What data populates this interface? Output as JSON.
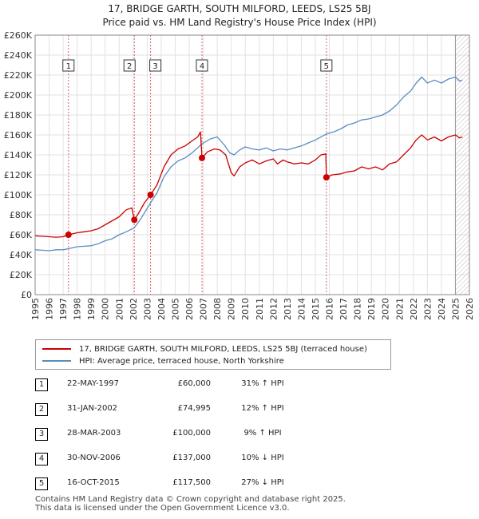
{
  "title": {
    "line1": "17, BRIDGE GARTH, SOUTH MILFORD, LEEDS, LS25 5BJ",
    "line2": "Price paid vs. HM Land Registry's House Price Index (HPI)"
  },
  "colors": {
    "property": "#cc0000",
    "hpi": "#5b8cc0",
    "grid": "#e2e2e2",
    "marker_line": "#e06060",
    "hatch": "#bbbbbb"
  },
  "chart_data": {
    "type": "line",
    "xlim": [
      1995,
      2026
    ],
    "ylim": [
      0,
      260000
    ],
    "x_ticks": [
      "1995",
      "1996",
      "1997",
      "1998",
      "1999",
      "2000",
      "2001",
      "2002",
      "2003",
      "2004",
      "2005",
      "2006",
      "2007",
      "2008",
      "2009",
      "2010",
      "2011",
      "2012",
      "2013",
      "2014",
      "2015",
      "2016",
      "2017",
      "2018",
      "2019",
      "2020",
      "2021",
      "2022",
      "2023",
      "2024",
      "2025",
      "2026"
    ],
    "y_ticks": [
      {
        "value": 0,
        "label": "£0"
      },
      {
        "value": 20000,
        "label": "£20K"
      },
      {
        "value": 40000,
        "label": "£40K"
      },
      {
        "value": 60000,
        "label": "£60K"
      },
      {
        "value": 80000,
        "label": "£80K"
      },
      {
        "value": 100000,
        "label": "£100K"
      },
      {
        "value": 120000,
        "label": "£120K"
      },
      {
        "value": 140000,
        "label": "£140K"
      },
      {
        "value": 160000,
        "label": "£160K"
      },
      {
        "value": 180000,
        "label": "£180K"
      },
      {
        "value": 200000,
        "label": "£200K"
      },
      {
        "value": 220000,
        "label": "£220K"
      },
      {
        "value": 240000,
        "label": "£240K"
      },
      {
        "value": 260000,
        "label": "£260K"
      }
    ],
    "hatch_from": 2025.0,
    "series": [
      {
        "name": "17, BRIDGE GARTH, SOUTH MILFORD, LEEDS, LS25 5BJ (terraced house)",
        "points": [
          [
            1995.0,
            59000
          ],
          [
            1995.5,
            58500
          ],
          [
            1996.0,
            58000
          ],
          [
            1996.5,
            57500
          ],
          [
            1997.0,
            58000
          ],
          [
            1997.38,
            60000
          ],
          [
            1998.0,
            62000
          ],
          [
            1998.5,
            63000
          ],
          [
            1999.0,
            64000
          ],
          [
            1999.5,
            66000
          ],
          [
            2000.0,
            70000
          ],
          [
            2000.5,
            74000
          ],
          [
            2001.0,
            78000
          ],
          [
            2001.5,
            85000
          ],
          [
            2001.9,
            87000
          ],
          [
            2002.08,
            74995
          ],
          [
            2002.4,
            82000
          ],
          [
            2002.8,
            92000
          ],
          [
            2003.24,
            100000
          ],
          [
            2003.7,
            110000
          ],
          [
            2004.2,
            128000
          ],
          [
            2004.7,
            140000
          ],
          [
            2005.2,
            146000
          ],
          [
            2005.7,
            149000
          ],
          [
            2006.2,
            154000
          ],
          [
            2006.6,
            158000
          ],
          [
            2006.8,
            163000
          ],
          [
            2006.91,
            137000
          ],
          [
            2007.3,
            143000
          ],
          [
            2007.8,
            146000
          ],
          [
            2008.2,
            145000
          ],
          [
            2008.6,
            140000
          ],
          [
            2009.0,
            122000
          ],
          [
            2009.2,
            119000
          ],
          [
            2009.6,
            128000
          ],
          [
            2010.0,
            132000
          ],
          [
            2010.5,
            135000
          ],
          [
            2011.0,
            131000
          ],
          [
            2011.5,
            134000
          ],
          [
            2012.0,
            136000
          ],
          [
            2012.3,
            131000
          ],
          [
            2012.7,
            135000
          ],
          [
            2013.0,
            133000
          ],
          [
            2013.5,
            131000
          ],
          [
            2014.0,
            132000
          ],
          [
            2014.5,
            131000
          ],
          [
            2015.0,
            135000
          ],
          [
            2015.4,
            140000
          ],
          [
            2015.75,
            141000
          ],
          [
            2015.79,
            117500
          ],
          [
            2016.2,
            120000
          ],
          [
            2016.8,
            121000
          ],
          [
            2017.3,
            123000
          ],
          [
            2017.8,
            124000
          ],
          [
            2018.3,
            128000
          ],
          [
            2018.8,
            126000
          ],
          [
            2019.3,
            128000
          ],
          [
            2019.8,
            125000
          ],
          [
            2020.3,
            131000
          ],
          [
            2020.8,
            133000
          ],
          [
            2021.3,
            140000
          ],
          [
            2021.8,
            147000
          ],
          [
            2022.2,
            155000
          ],
          [
            2022.6,
            160000
          ],
          [
            2023.0,
            155000
          ],
          [
            2023.5,
            158000
          ],
          [
            2024.0,
            154000
          ],
          [
            2024.5,
            158000
          ],
          [
            2025.0,
            160000
          ],
          [
            2025.3,
            157000
          ],
          [
            2025.5,
            158000
          ]
        ]
      },
      {
        "name": "HPI: Average price, terraced house, North Yorkshire",
        "points": [
          [
            1995.0,
            45000
          ],
          [
            1995.5,
            44500
          ],
          [
            1996.0,
            44000
          ],
          [
            1996.5,
            45000
          ],
          [
            1997.0,
            45000
          ],
          [
            1997.38,
            46000
          ],
          [
            1998.0,
            48000
          ],
          [
            1998.5,
            48500
          ],
          [
            1999.0,
            49000
          ],
          [
            1999.5,
            51000
          ],
          [
            2000.0,
            54000
          ],
          [
            2000.5,
            56000
          ],
          [
            2001.0,
            60000
          ],
          [
            2001.5,
            63000
          ],
          [
            2002.08,
            67000
          ],
          [
            2002.5,
            75000
          ],
          [
            2003.24,
            92000
          ],
          [
            2003.7,
            102000
          ],
          [
            2004.2,
            118000
          ],
          [
            2004.7,
            128000
          ],
          [
            2005.2,
            134000
          ],
          [
            2005.7,
            137000
          ],
          [
            2006.2,
            142000
          ],
          [
            2006.91,
            151000
          ],
          [
            2007.5,
            156000
          ],
          [
            2008.0,
            158000
          ],
          [
            2008.5,
            150000
          ],
          [
            2008.9,
            142000
          ],
          [
            2009.2,
            140000
          ],
          [
            2009.6,
            145000
          ],
          [
            2010.0,
            148000
          ],
          [
            2010.5,
            146000
          ],
          [
            2011.0,
            145000
          ],
          [
            2011.5,
            147000
          ],
          [
            2012.0,
            144000
          ],
          [
            2012.5,
            146000
          ],
          [
            2013.0,
            145000
          ],
          [
            2013.5,
            147000
          ],
          [
            2014.0,
            149000
          ],
          [
            2014.5,
            152000
          ],
          [
            2015.0,
            155000
          ],
          [
            2015.79,
            161000
          ],
          [
            2016.3,
            163000
          ],
          [
            2016.8,
            166000
          ],
          [
            2017.3,
            170000
          ],
          [
            2017.8,
            172000
          ],
          [
            2018.3,
            175000
          ],
          [
            2018.8,
            176000
          ],
          [
            2019.3,
            178000
          ],
          [
            2019.8,
            180000
          ],
          [
            2020.3,
            184000
          ],
          [
            2020.8,
            190000
          ],
          [
            2021.3,
            198000
          ],
          [
            2021.8,
            204000
          ],
          [
            2022.2,
            212000
          ],
          [
            2022.6,
            218000
          ],
          [
            2023.0,
            212000
          ],
          [
            2023.5,
            215000
          ],
          [
            2024.0,
            212000
          ],
          [
            2024.5,
            216000
          ],
          [
            2025.0,
            218000
          ],
          [
            2025.3,
            214000
          ],
          [
            2025.5,
            215000
          ]
        ]
      }
    ],
    "sales": [
      {
        "label": "1",
        "x": 1997.38,
        "price": 60000
      },
      {
        "label": "2",
        "x": 2002.08,
        "price": 74995
      },
      {
        "label": "3",
        "x": 2003.24,
        "price": 100000
      },
      {
        "label": "4",
        "x": 2006.91,
        "price": 137000
      },
      {
        "label": "5",
        "x": 2015.79,
        "price": 117500
      }
    ]
  },
  "legend": {
    "property": "17, BRIDGE GARTH, SOUTH MILFORD, LEEDS, LS25 5BJ (terraced house)",
    "hpi": "HPI: Average price, terraced house, North Yorkshire"
  },
  "table": [
    {
      "num": "1",
      "date": "22-MAY-1997",
      "price": "£60,000",
      "hpi": "31% ↑ HPI"
    },
    {
      "num": "2",
      "date": "31-JAN-2002",
      "price": "£74,995",
      "hpi": "12% ↑ HPI"
    },
    {
      "num": "3",
      "date": "28-MAR-2003",
      "price": "£100,000",
      "hpi": "9% ↑ HPI"
    },
    {
      "num": "4",
      "date": "30-NOV-2006",
      "price": "£137,000",
      "hpi": "10% ↓ HPI"
    },
    {
      "num": "5",
      "date": "16-OCT-2015",
      "price": "£117,500",
      "hpi": "27% ↓ HPI"
    }
  ],
  "footer": {
    "line1": "Contains HM Land Registry data © Crown copyright and database right 2025.",
    "line2": "This data is licensed under the Open Government Licence v3.0."
  }
}
